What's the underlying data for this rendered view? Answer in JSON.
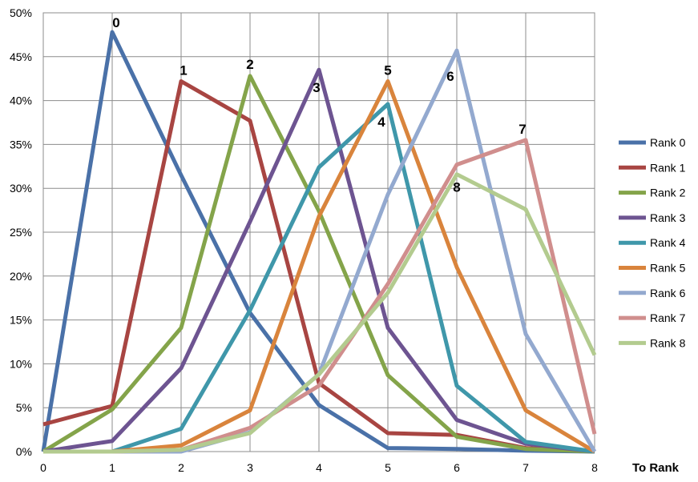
{
  "chart_data": {
    "type": "line",
    "title": "",
    "xlabel": "To Rank",
    "ylabel": "",
    "x": [
      0,
      1,
      2,
      3,
      4,
      5,
      6,
      7,
      8
    ],
    "ylim": [
      0,
      50
    ],
    "y_ticks": [
      "0%",
      "5%",
      "10%",
      "15%",
      "20%",
      "25%",
      "30%",
      "35%",
      "40%",
      "45%",
      "50%"
    ],
    "x_ticks": [
      "0",
      "1",
      "2",
      "3",
      "4",
      "5",
      "6",
      "7",
      "8"
    ],
    "grid": true,
    "legend": "right",
    "series": [
      {
        "name": "Rank 0",
        "color": "#4a71a8",
        "values": [
          0,
          47.8,
          31.5,
          15.8,
          5.3,
          0.4,
          0.3,
          0.1,
          0
        ]
      },
      {
        "name": "Rank 1",
        "color": "#a84542",
        "values": [
          3.1,
          5.2,
          42.2,
          37.7,
          7.8,
          2.1,
          1.9,
          0.4,
          0
        ]
      },
      {
        "name": "Rank 2",
        "color": "#84a44a",
        "values": [
          0,
          4.8,
          14.1,
          42.8,
          27.4,
          8.7,
          1.7,
          0.3,
          0
        ]
      },
      {
        "name": "Rank 3",
        "color": "#6d5491",
        "values": [
          0,
          1.2,
          9.5,
          26.2,
          43.5,
          14.1,
          3.6,
          0.9,
          0
        ]
      },
      {
        "name": "Rank 4",
        "color": "#3f97aa",
        "values": [
          0,
          0,
          2.6,
          16.1,
          32.4,
          39.6,
          7.5,
          1.1,
          0
        ]
      },
      {
        "name": "Rank 5",
        "color": "#d9843c",
        "values": [
          0,
          0,
          0.7,
          4.7,
          26.8,
          42.2,
          21,
          4.7,
          0
        ]
      },
      {
        "name": "Rank 6",
        "color": "#93a9cf",
        "values": [
          0,
          0,
          0,
          2.2,
          8.8,
          29.3,
          45.7,
          13.4,
          0
        ]
      },
      {
        "name": "Rank 7",
        "color": "#d08e8d",
        "values": [
          0,
          0,
          0.2,
          2.7,
          7.5,
          19.1,
          32.7,
          35.5,
          2
        ]
      },
      {
        "name": "Rank 8",
        "color": "#b3cb8f",
        "values": [
          0,
          0,
          0.2,
          2.1,
          8.8,
          18.1,
          31.6,
          27.6,
          11
        ]
      }
    ],
    "annotations": [
      {
        "text": "0",
        "x": 1,
        "y": 47.8
      },
      {
        "text": "1",
        "x": 2,
        "y": 42.2
      },
      {
        "text": "2",
        "x": 3,
        "y": 42.8
      },
      {
        "text": "3",
        "x": 4,
        "y": 43.5
      },
      {
        "text": "4",
        "x": 5,
        "y": 39.6
      },
      {
        "text": "5",
        "x": 5,
        "y": 42.2
      },
      {
        "text": "6",
        "x": 6,
        "y": 45.7
      },
      {
        "text": "7",
        "x": 7,
        "y": 35.5
      },
      {
        "text": "8",
        "x": 6,
        "y": 31.6
      }
    ]
  }
}
